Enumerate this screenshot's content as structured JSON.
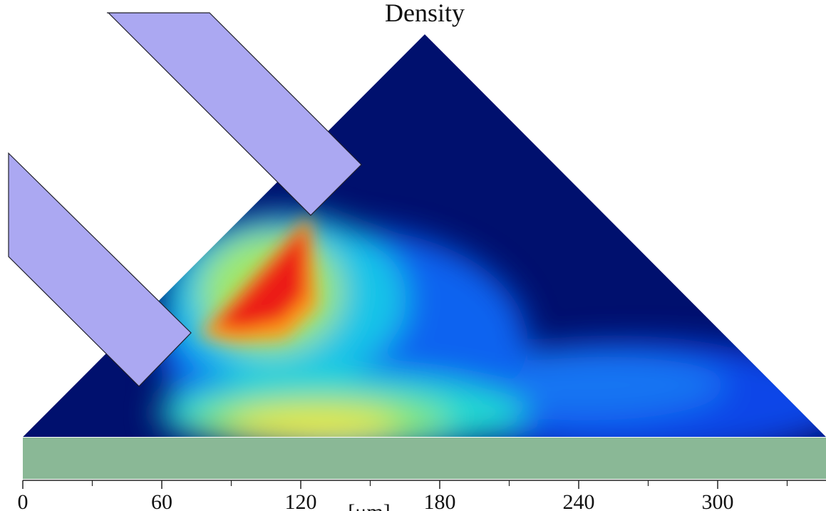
{
  "chart_data": {
    "type": "heatmap",
    "title": "Density",
    "xlabel": "[μm]",
    "xlim": [
      0,
      348
    ],
    "x_ticks": [
      0,
      60,
      120,
      180,
      240,
      300
    ],
    "x_minor_ticks": [
      30,
      90,
      150,
      210,
      270,
      330
    ],
    "colormap": "jet",
    "domain": {
      "shape": "triangle",
      "apex_x": 174,
      "apex_height": 174,
      "base": [
        0,
        348
      ]
    },
    "density_features": [
      {
        "name": "hot spot below upper nozzle",
        "x_range": [
          78,
          124
        ],
        "level": 1.0
      },
      {
        "name": "band along substrate",
        "x_range": [
          85,
          175
        ],
        "level": 0.62
      },
      {
        "name": "diffuse band toward right",
        "x_range": [
          180,
          330
        ],
        "level": 0.32
      }
    ],
    "objects": [
      {
        "name": "upper nozzle",
        "color": "#aba8f2"
      },
      {
        "name": "lower nozzle",
        "color": "#aba8f2"
      },
      {
        "name": "substrate",
        "color": "#8ab896"
      }
    ],
    "colors": {
      "background": "#00106e",
      "nozzle": "#aba8f2",
      "nozzle_edge": "#1f1f2a",
      "substrate": "#8ab896",
      "axis": "#222222"
    }
  }
}
